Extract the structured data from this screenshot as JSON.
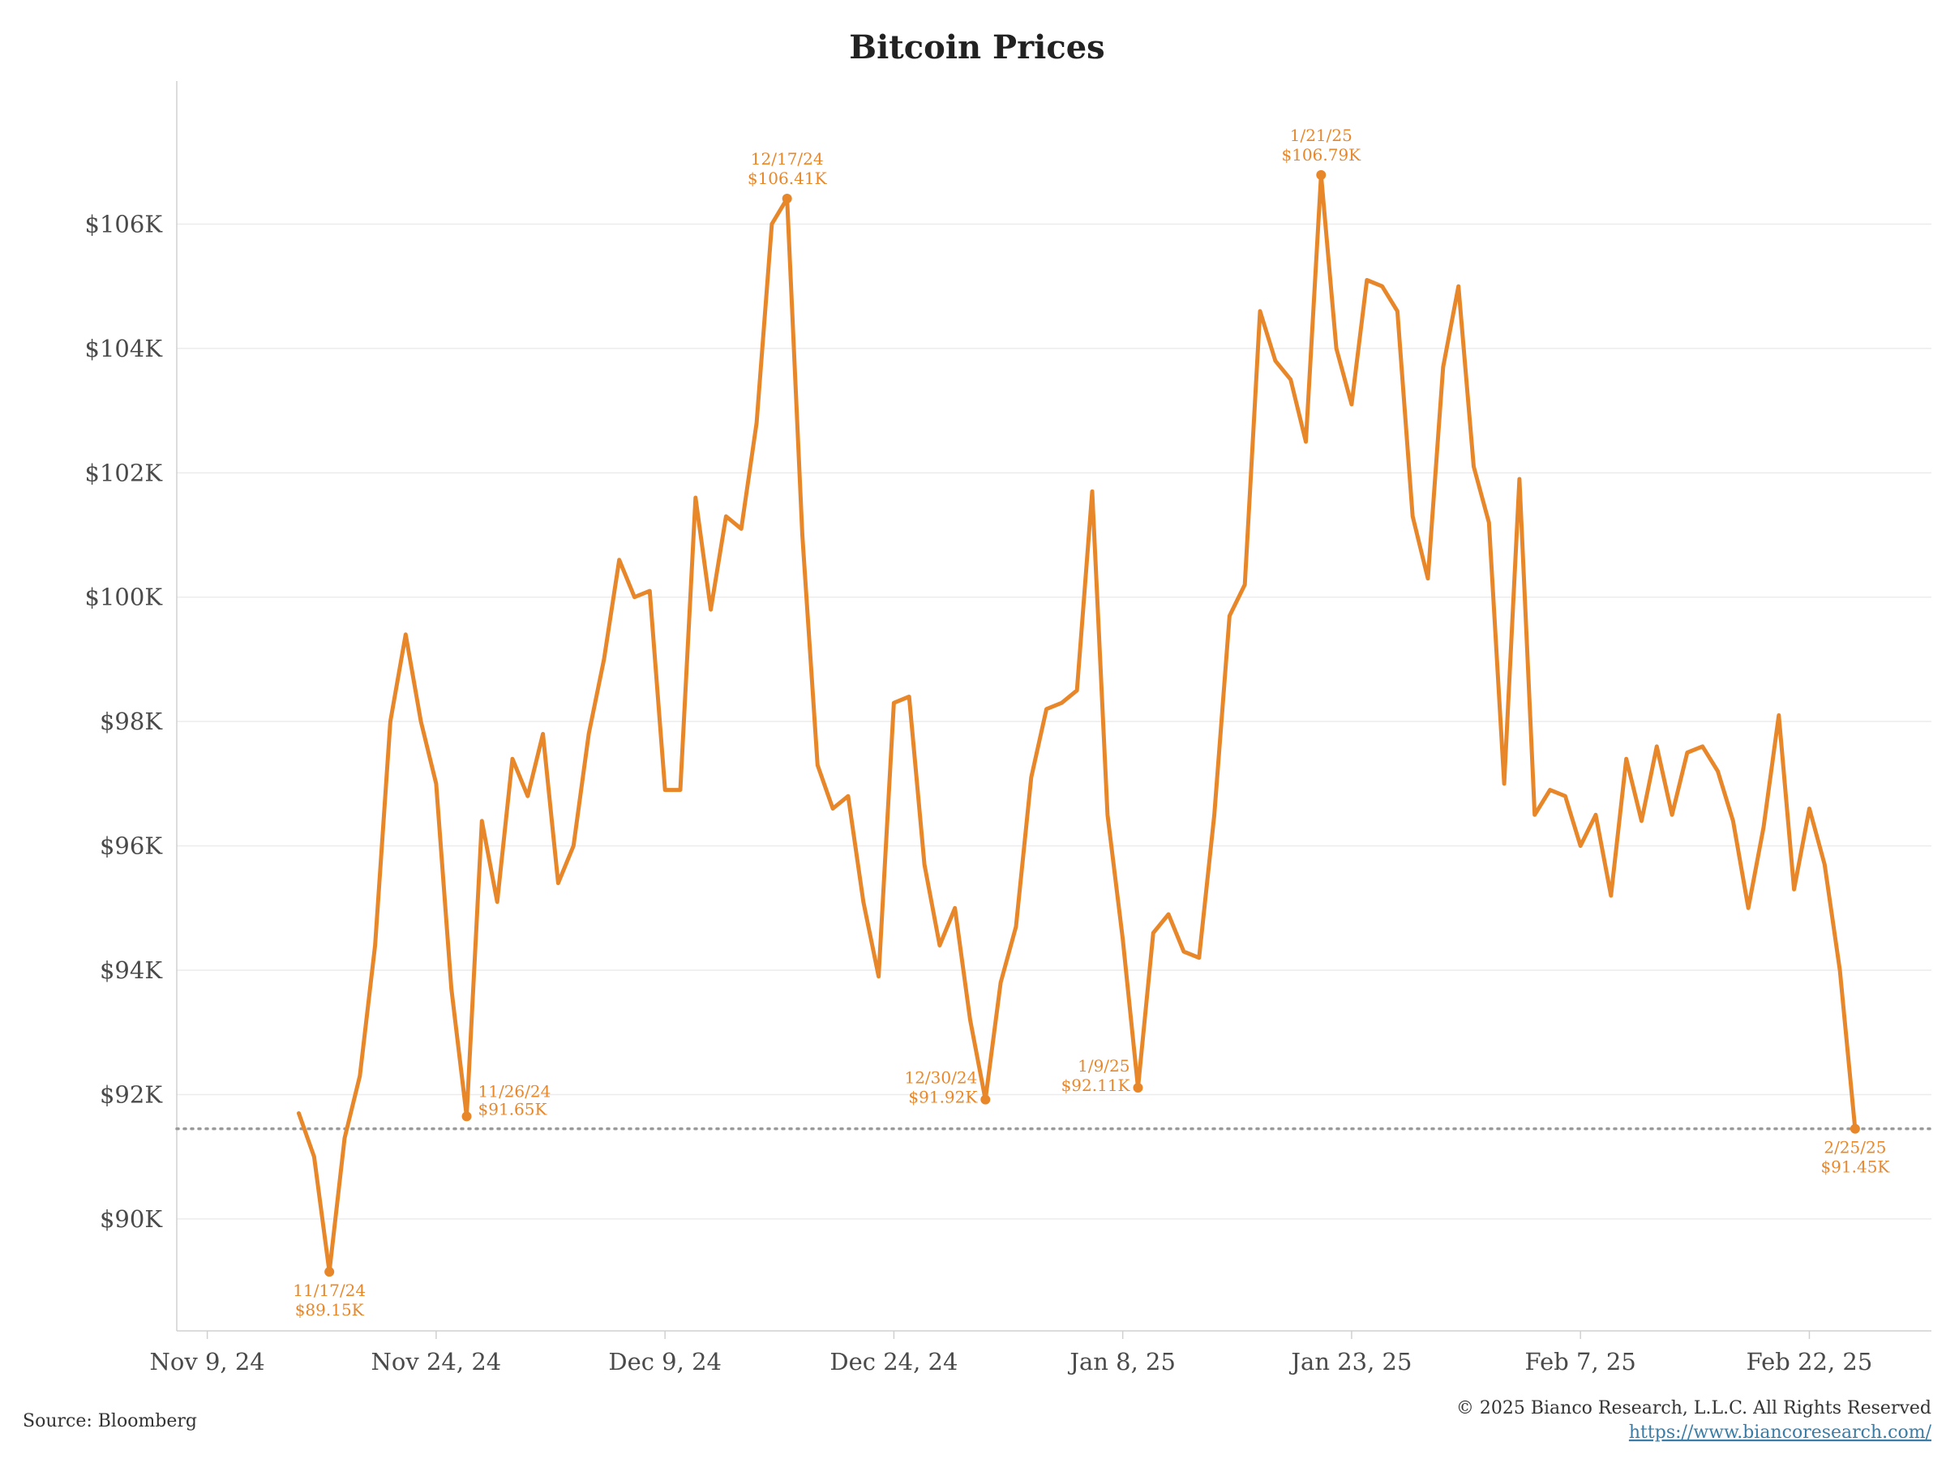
{
  "chart_data": {
    "type": "line",
    "title": "Bitcoin Prices",
    "xlabel": "",
    "ylabel": "",
    "line_color": "#e8872a",
    "reference_line": {
      "value": 91.45,
      "style": "dotted",
      "color": "#9a9a9a"
    },
    "x_range": [
      "2024-11-07",
      "2025-03-02"
    ],
    "ylim": [
      88.2,
      108.3
    ],
    "grid": "horizontal",
    "y_ticks": [
      {
        "value": 90,
        "label": "$90K"
      },
      {
        "value": 92,
        "label": "$92K"
      },
      {
        "value": 94,
        "label": "$94K"
      },
      {
        "value": 96,
        "label": "$96K"
      },
      {
        "value": 98,
        "label": "$98K"
      },
      {
        "value": 100,
        "label": "$100K"
      },
      {
        "value": 102,
        "label": "$102K"
      },
      {
        "value": 104,
        "label": "$104K"
      },
      {
        "value": 106,
        "label": "$106K"
      }
    ],
    "x_ticks": [
      {
        "date": "2024-11-09",
        "label": "Nov 9, 24"
      },
      {
        "date": "2024-11-24",
        "label": "Nov 24, 24"
      },
      {
        "date": "2024-12-09",
        "label": "Dec 9, 24"
      },
      {
        "date": "2024-12-24",
        "label": "Dec 24, 24"
      },
      {
        "date": "2025-01-08",
        "label": "Jan 8, 25"
      },
      {
        "date": "2025-01-23",
        "label": "Jan 23, 25"
      },
      {
        "date": "2025-02-07",
        "label": "Feb 7, 25"
      },
      {
        "date": "2025-02-22",
        "label": "Feb 22, 25"
      }
    ],
    "series": [
      {
        "unit": "$K",
        "points": [
          [
            "2024-11-15",
            91.7
          ],
          [
            "2024-11-16",
            91.0
          ],
          [
            "2024-11-17",
            89.15
          ],
          [
            "2024-11-18",
            91.3
          ],
          [
            "2024-11-19",
            92.3
          ],
          [
            "2024-11-20",
            94.4
          ],
          [
            "2024-11-21",
            98.0
          ],
          [
            "2024-11-22",
            99.4
          ],
          [
            "2024-11-23",
            98.0
          ],
          [
            "2024-11-24",
            97.0
          ],
          [
            "2024-11-25",
            93.7
          ],
          [
            "2024-11-26",
            91.65
          ],
          [
            "2024-11-27",
            96.4
          ],
          [
            "2024-11-28",
            95.1
          ],
          [
            "2024-11-29",
            97.4
          ],
          [
            "2024-11-30",
            96.8
          ],
          [
            "2024-12-01",
            97.8
          ],
          [
            "2024-12-02",
            95.4
          ],
          [
            "2024-12-03",
            96.0
          ],
          [
            "2024-12-04",
            97.8
          ],
          [
            "2024-12-05",
            99.0
          ],
          [
            "2024-12-06",
            100.6
          ],
          [
            "2024-12-07",
            100.0
          ],
          [
            "2024-12-08",
            100.1
          ],
          [
            "2024-12-09",
            96.9
          ],
          [
            "2024-12-10",
            96.9
          ],
          [
            "2024-12-11",
            101.6
          ],
          [
            "2024-12-12",
            99.8
          ],
          [
            "2024-12-13",
            101.3
          ],
          [
            "2024-12-14",
            101.1
          ],
          [
            "2024-12-15",
            102.8
          ],
          [
            "2024-12-16",
            106.0
          ],
          [
            "2024-12-17",
            106.41
          ],
          [
            "2024-12-18",
            101.0
          ],
          [
            "2024-12-19",
            97.3
          ],
          [
            "2024-12-20",
            96.6
          ],
          [
            "2024-12-21",
            96.8
          ],
          [
            "2024-12-22",
            95.1
          ],
          [
            "2024-12-23",
            93.9
          ],
          [
            "2024-12-24",
            98.3
          ],
          [
            "2024-12-25",
            98.4
          ],
          [
            "2024-12-26",
            95.7
          ],
          [
            "2024-12-27",
            94.4
          ],
          [
            "2024-12-28",
            95.0
          ],
          [
            "2024-12-29",
            93.2
          ],
          [
            "2024-12-30",
            91.92
          ],
          [
            "2024-12-31",
            93.8
          ],
          [
            "2025-01-01",
            94.7
          ],
          [
            "2025-01-02",
            97.1
          ],
          [
            "2025-01-03",
            98.2
          ],
          [
            "2025-01-04",
            98.3
          ],
          [
            "2025-01-05",
            98.5
          ],
          [
            "2025-01-06",
            101.7
          ],
          [
            "2025-01-07",
            96.5
          ],
          [
            "2025-01-08",
            94.5
          ],
          [
            "2025-01-09",
            92.11
          ],
          [
            "2025-01-10",
            94.6
          ],
          [
            "2025-01-11",
            94.9
          ],
          [
            "2025-01-12",
            94.3
          ],
          [
            "2025-01-13",
            94.2
          ],
          [
            "2025-01-14",
            96.5
          ],
          [
            "2025-01-15",
            99.7
          ],
          [
            "2025-01-16",
            100.2
          ],
          [
            "2025-01-17",
            104.6
          ],
          [
            "2025-01-18",
            103.8
          ],
          [
            "2025-01-19",
            103.5
          ],
          [
            "2025-01-20",
            102.5
          ],
          [
            "2025-01-21",
            106.79
          ],
          [
            "2025-01-22",
            104.0
          ],
          [
            "2025-01-23",
            103.1
          ],
          [
            "2025-01-24",
            105.1
          ],
          [
            "2025-01-25",
            105.0
          ],
          [
            "2025-01-26",
            104.6
          ],
          [
            "2025-01-27",
            101.3
          ],
          [
            "2025-01-28",
            100.3
          ],
          [
            "2025-01-29",
            103.7
          ],
          [
            "2025-01-30",
            105.0
          ],
          [
            "2025-01-31",
            102.1
          ],
          [
            "2025-02-01",
            101.2
          ],
          [
            "2025-02-02",
            97.0
          ],
          [
            "2025-02-03",
            101.9
          ],
          [
            "2025-02-04",
            96.5
          ],
          [
            "2025-02-05",
            96.9
          ],
          [
            "2025-02-06",
            96.8
          ],
          [
            "2025-02-07",
            96.0
          ],
          [
            "2025-02-08",
            96.5
          ],
          [
            "2025-02-09",
            95.2
          ],
          [
            "2025-02-10",
            97.4
          ],
          [
            "2025-02-11",
            96.4
          ],
          [
            "2025-02-12",
            97.6
          ],
          [
            "2025-02-13",
            96.5
          ],
          [
            "2025-02-14",
            97.5
          ],
          [
            "2025-02-15",
            97.6
          ],
          [
            "2025-02-16",
            97.2
          ],
          [
            "2025-02-17",
            96.4
          ],
          [
            "2025-02-18",
            95.0
          ],
          [
            "2025-02-19",
            96.3
          ],
          [
            "2025-02-20",
            98.1
          ],
          [
            "2025-02-21",
            95.3
          ],
          [
            "2025-02-22",
            96.6
          ],
          [
            "2025-02-23",
            95.7
          ],
          [
            "2025-02-24",
            94.0
          ],
          [
            "2025-02-25",
            91.45
          ]
        ]
      }
    ],
    "annotations": [
      {
        "date": "2024-11-17",
        "value": 89.15,
        "label_date": "11/17/24",
        "label_value": "$89.15K",
        "placement": "below"
      },
      {
        "date": "2024-11-26",
        "value": 91.65,
        "label_date": "11/26/24",
        "label_value": "$91.65K",
        "placement": "right"
      },
      {
        "date": "2024-12-17",
        "value": 106.41,
        "label_date": "12/17/24",
        "label_value": "$106.41K",
        "placement": "above"
      },
      {
        "date": "2024-12-30",
        "value": 91.92,
        "label_date": "12/30/24",
        "label_value": "$91.92K",
        "placement": "left"
      },
      {
        "date": "2025-01-09",
        "value": 92.11,
        "label_date": "1/9/25",
        "label_value": "$92.11K",
        "placement": "left"
      },
      {
        "date": "2025-01-21",
        "value": 106.79,
        "label_date": "1/21/25",
        "label_value": "$106.79K",
        "placement": "above"
      },
      {
        "date": "2025-02-25",
        "value": 91.45,
        "label_date": "2/25/25",
        "label_value": "$91.45K",
        "placement": "below"
      }
    ]
  },
  "footer": {
    "source": "Source: Bloomberg",
    "copyright": "© 2025 Bianco Research, L.L.C. All Rights Reserved",
    "url": "https://www.biancoresearch.com/"
  }
}
